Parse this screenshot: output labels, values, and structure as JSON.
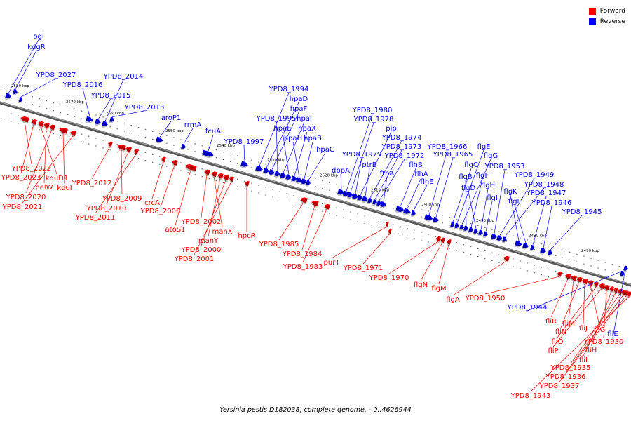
{
  "legend": {
    "forward_label": "Forward",
    "reverse_label": "Reverse",
    "forward_color": "#ff0000",
    "reverse_color": "#0000ff"
  },
  "caption": "Yersinia pestis D182038, complete genome. - 0..4626944",
  "colors": {
    "axis": "#555555",
    "forward": "#ff0000",
    "reverse": "#0000ff"
  },
  "ticks": [
    "2580 kbp",
    "2570 kbp",
    "2560 kbp",
    "2550 kbp",
    "2540 kbp",
    "2530 kbp",
    "2520 kbp",
    "2510 kbp",
    "2500 kbp",
    "2490 kbp",
    "2480 kbp",
    "2470 kbp"
  ],
  "reverse_labels": [
    "ogl",
    "kdgR",
    "YPD8_2027",
    "YPD8_2016",
    "YPD8_2015",
    "YPD8_2014",
    "YPD8_2013",
    "aroP1",
    "rrmA",
    "fcuA",
    "YPD8_1997",
    "YPD8_1994",
    "hpaD",
    "hpaF",
    "YPD8_1995",
    "hpaI",
    "hpaE",
    "hpaX",
    "hpaH",
    "hpaB",
    "hpaC",
    "dbpA",
    "YPD8_1980",
    "YPD8_1978",
    "YPD8_1979",
    "pip",
    "ptrB",
    "YPD8_1974",
    "YPD8_1973",
    "YPD8_1972",
    "ftnA",
    "flhB",
    "flhA",
    "flhE",
    "YPD8_1966",
    "YPD8_1965",
    "flgC",
    "flgE",
    "flgG",
    "flgB",
    "flgF",
    "flgD",
    "flgH",
    "flgI",
    "YPD8_1953",
    "YPD8_1949",
    "YPD8_1948",
    "flgK",
    "flgL",
    "YPD8_1947",
    "YPD8_1946",
    "YPD8_1945",
    "YPD8_1944",
    "fliE"
  ],
  "forward_labels": [
    "YPD8_2022",
    "YPD8_2023",
    "kduD1",
    "pelW",
    "YPD8_2020",
    "kduI",
    "YPD8_2021",
    "YPD8_2012",
    "YPD8_2009",
    "YPD8_2010",
    "YPD8_2011",
    "crcA",
    "YPD8_2006",
    "atoS1",
    "YPD8_2002",
    "manX",
    "manY",
    "YPD8_2000",
    "YPD8_2001",
    "hpcR",
    "YPD8_1985",
    "YPD8_1984",
    "YPD8_1983",
    "purT",
    "YPD8_1971",
    "YPD8_1970",
    "flgN",
    "flgM",
    "flgA",
    "YPD8_1950",
    "fliR",
    "fliM",
    "fliN",
    "fliJ",
    "fliG",
    "fliO",
    "fliP",
    "YPD8_1930",
    "fliH",
    "fliI",
    "YPD8_1935",
    "YPD8_1936",
    "YPD8_1937",
    "YPD8_1943"
  ]
}
